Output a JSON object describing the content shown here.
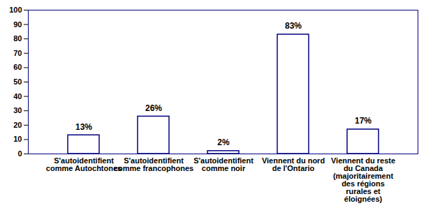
{
  "chart_data": {
    "type": "bar",
    "categories": [
      "S'autoidentifient comme Autochtones",
      "S'autoidentifient comme francophones",
      "S'autoidentifient comme noir",
      "Viennent du nord de l'Ontario",
      "Viennent du reste du Canada (majoritairement des régions rurales et éloignées)"
    ],
    "values": [
      13,
      26,
      2,
      83,
      17
    ],
    "value_labels": [
      "13%",
      "26%",
      "2%",
      "83%",
      "17%"
    ],
    "data_labels": true,
    "color": "#ffffff",
    "ylim": [
      0,
      100
    ],
    "yticks": [
      0,
      10,
      20,
      30,
      40,
      50,
      60,
      70,
      80,
      90,
      100
    ],
    "grid": false
  }
}
